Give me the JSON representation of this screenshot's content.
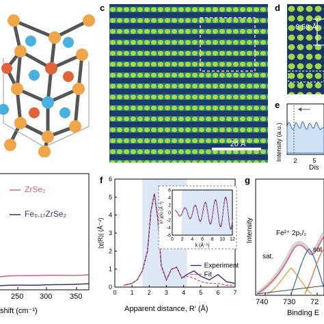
{
  "panels": {
    "c": {
      "label": "c",
      "scalebar": "20 Å"
    },
    "d": {
      "label": "d",
      "distance": "6.59 Å"
    },
    "e": {
      "label": "e",
      "ylabel": "Intensity (a.u.)",
      "xlabel": "Dis"
    },
    "left_spectrum": {
      "legend": [
        "ZrSe₂",
        "Fe₀.₁₇ZrSe₂"
      ],
      "xlabel": "shift (cm⁻¹)",
      "xticks": [
        "250",
        "300",
        "350"
      ],
      "series_colors": [
        "#d9607a",
        "#3b2f7a"
      ]
    },
    "f": {
      "label": "f",
      "ylabel": "|χ(R)| (Å⁻⁴)",
      "xlabel": "Apparent distance, R′ (Å)",
      "legend": [
        "Experiment",
        "Fit"
      ],
      "inset": {
        "ylabel": "k³·χ(k) (Å⁻³)",
        "xlabel": "k (Å⁻¹)",
        "xticks": [
          "0",
          "2",
          "4",
          "6",
          "8",
          "10",
          "12"
        ],
        "yticks": [
          "6",
          "4",
          "2",
          "0",
          "-2",
          "-4",
          "-6"
        ]
      },
      "xticks": [
        "0",
        "1",
        "2",
        "3",
        "4",
        "5",
        "6",
        "7"
      ],
      "yticks": [
        "0",
        "1",
        "2",
        "3",
        "4",
        "5",
        "6"
      ]
    },
    "g": {
      "label": "g",
      "ylabel": "Intensity",
      "xlabel": "Binding E",
      "annotation": "Fe²⁺ 2p₁/₂",
      "sat1": "sat.",
      "sat2": "sat",
      "xticks": [
        "740",
        "730",
        "72"
      ]
    }
  },
  "chart_data": [
    {
      "type": "line",
      "title": "",
      "xlabel": "Apparent distance, R′ (Å)",
      "ylabel": "|χ(R)| (Å⁻⁴)",
      "xlim": [
        0,
        7
      ],
      "ylim": [
        0,
        6
      ],
      "x": [
        0.5,
        1.0,
        1.3,
        1.6,
        1.9,
        2.1,
        2.3,
        2.5,
        2.7,
        3.0,
        3.3,
        3.6,
        3.9,
        4.2,
        4.6,
        5.0,
        5.5,
        6.0,
        6.5,
        7.0
      ],
      "series": [
        {
          "name": "Experiment",
          "values": [
            0.1,
            0.2,
            0.4,
            0.9,
            2.0,
            4.2,
            5.2,
            3.8,
            1.2,
            0.4,
            1.0,
            1.1,
            0.5,
            0.7,
            0.9,
            0.6,
            0.4,
            0.7,
            0.3,
            0.2
          ]
        },
        {
          "name": "Fit",
          "values": [
            0.1,
            0.2,
            0.4,
            0.9,
            2.0,
            4.2,
            5.2,
            3.8,
            1.2,
            0.4,
            1.0,
            1.1,
            0.5,
            0.6,
            0.5,
            0.3,
            0.2,
            0.2,
            0.1,
            0.1
          ]
        }
      ]
    }
  ]
}
